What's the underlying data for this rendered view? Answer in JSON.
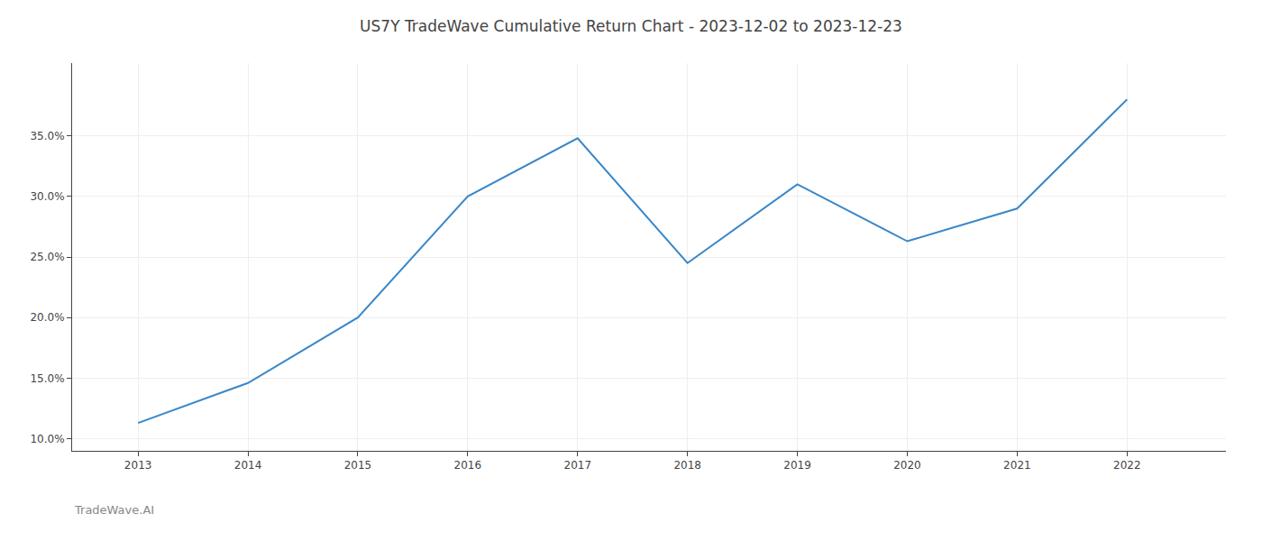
{
  "chart_data": {
    "type": "line",
    "title": "US7Y TradeWave Cumulative Return Chart - 2023-12-02 to 2023-12-23",
    "annotations": [
      "TradeWave.AI"
    ],
    "x": [
      2013,
      2014,
      2015,
      2016,
      2017,
      2018,
      2019,
      2020,
      2021,
      2022
    ],
    "values": [
      11.3,
      14.6,
      20.0,
      30.0,
      34.8,
      24.5,
      31.0,
      26.3,
      29.0,
      38.0
    ],
    "color": "#3a87c8",
    "xlim": [
      2012.4,
      2022.9
    ],
    "xticks": [
      2013,
      2014,
      2015,
      2016,
      2017,
      2018,
      2019,
      2020,
      2021,
      2022
    ],
    "ylim": [
      9.0,
      41.0
    ],
    "yticks": [
      {
        "value": 10.0,
        "label": "10.0%"
      },
      {
        "value": 15.0,
        "label": "15.0%"
      },
      {
        "value": 20.0,
        "label": "20.0%"
      },
      {
        "value": 25.0,
        "label": "25.0%"
      },
      {
        "value": 30.0,
        "label": "30.0%"
      },
      {
        "value": 35.0,
        "label": "35.0%"
      }
    ],
    "grid": true
  }
}
